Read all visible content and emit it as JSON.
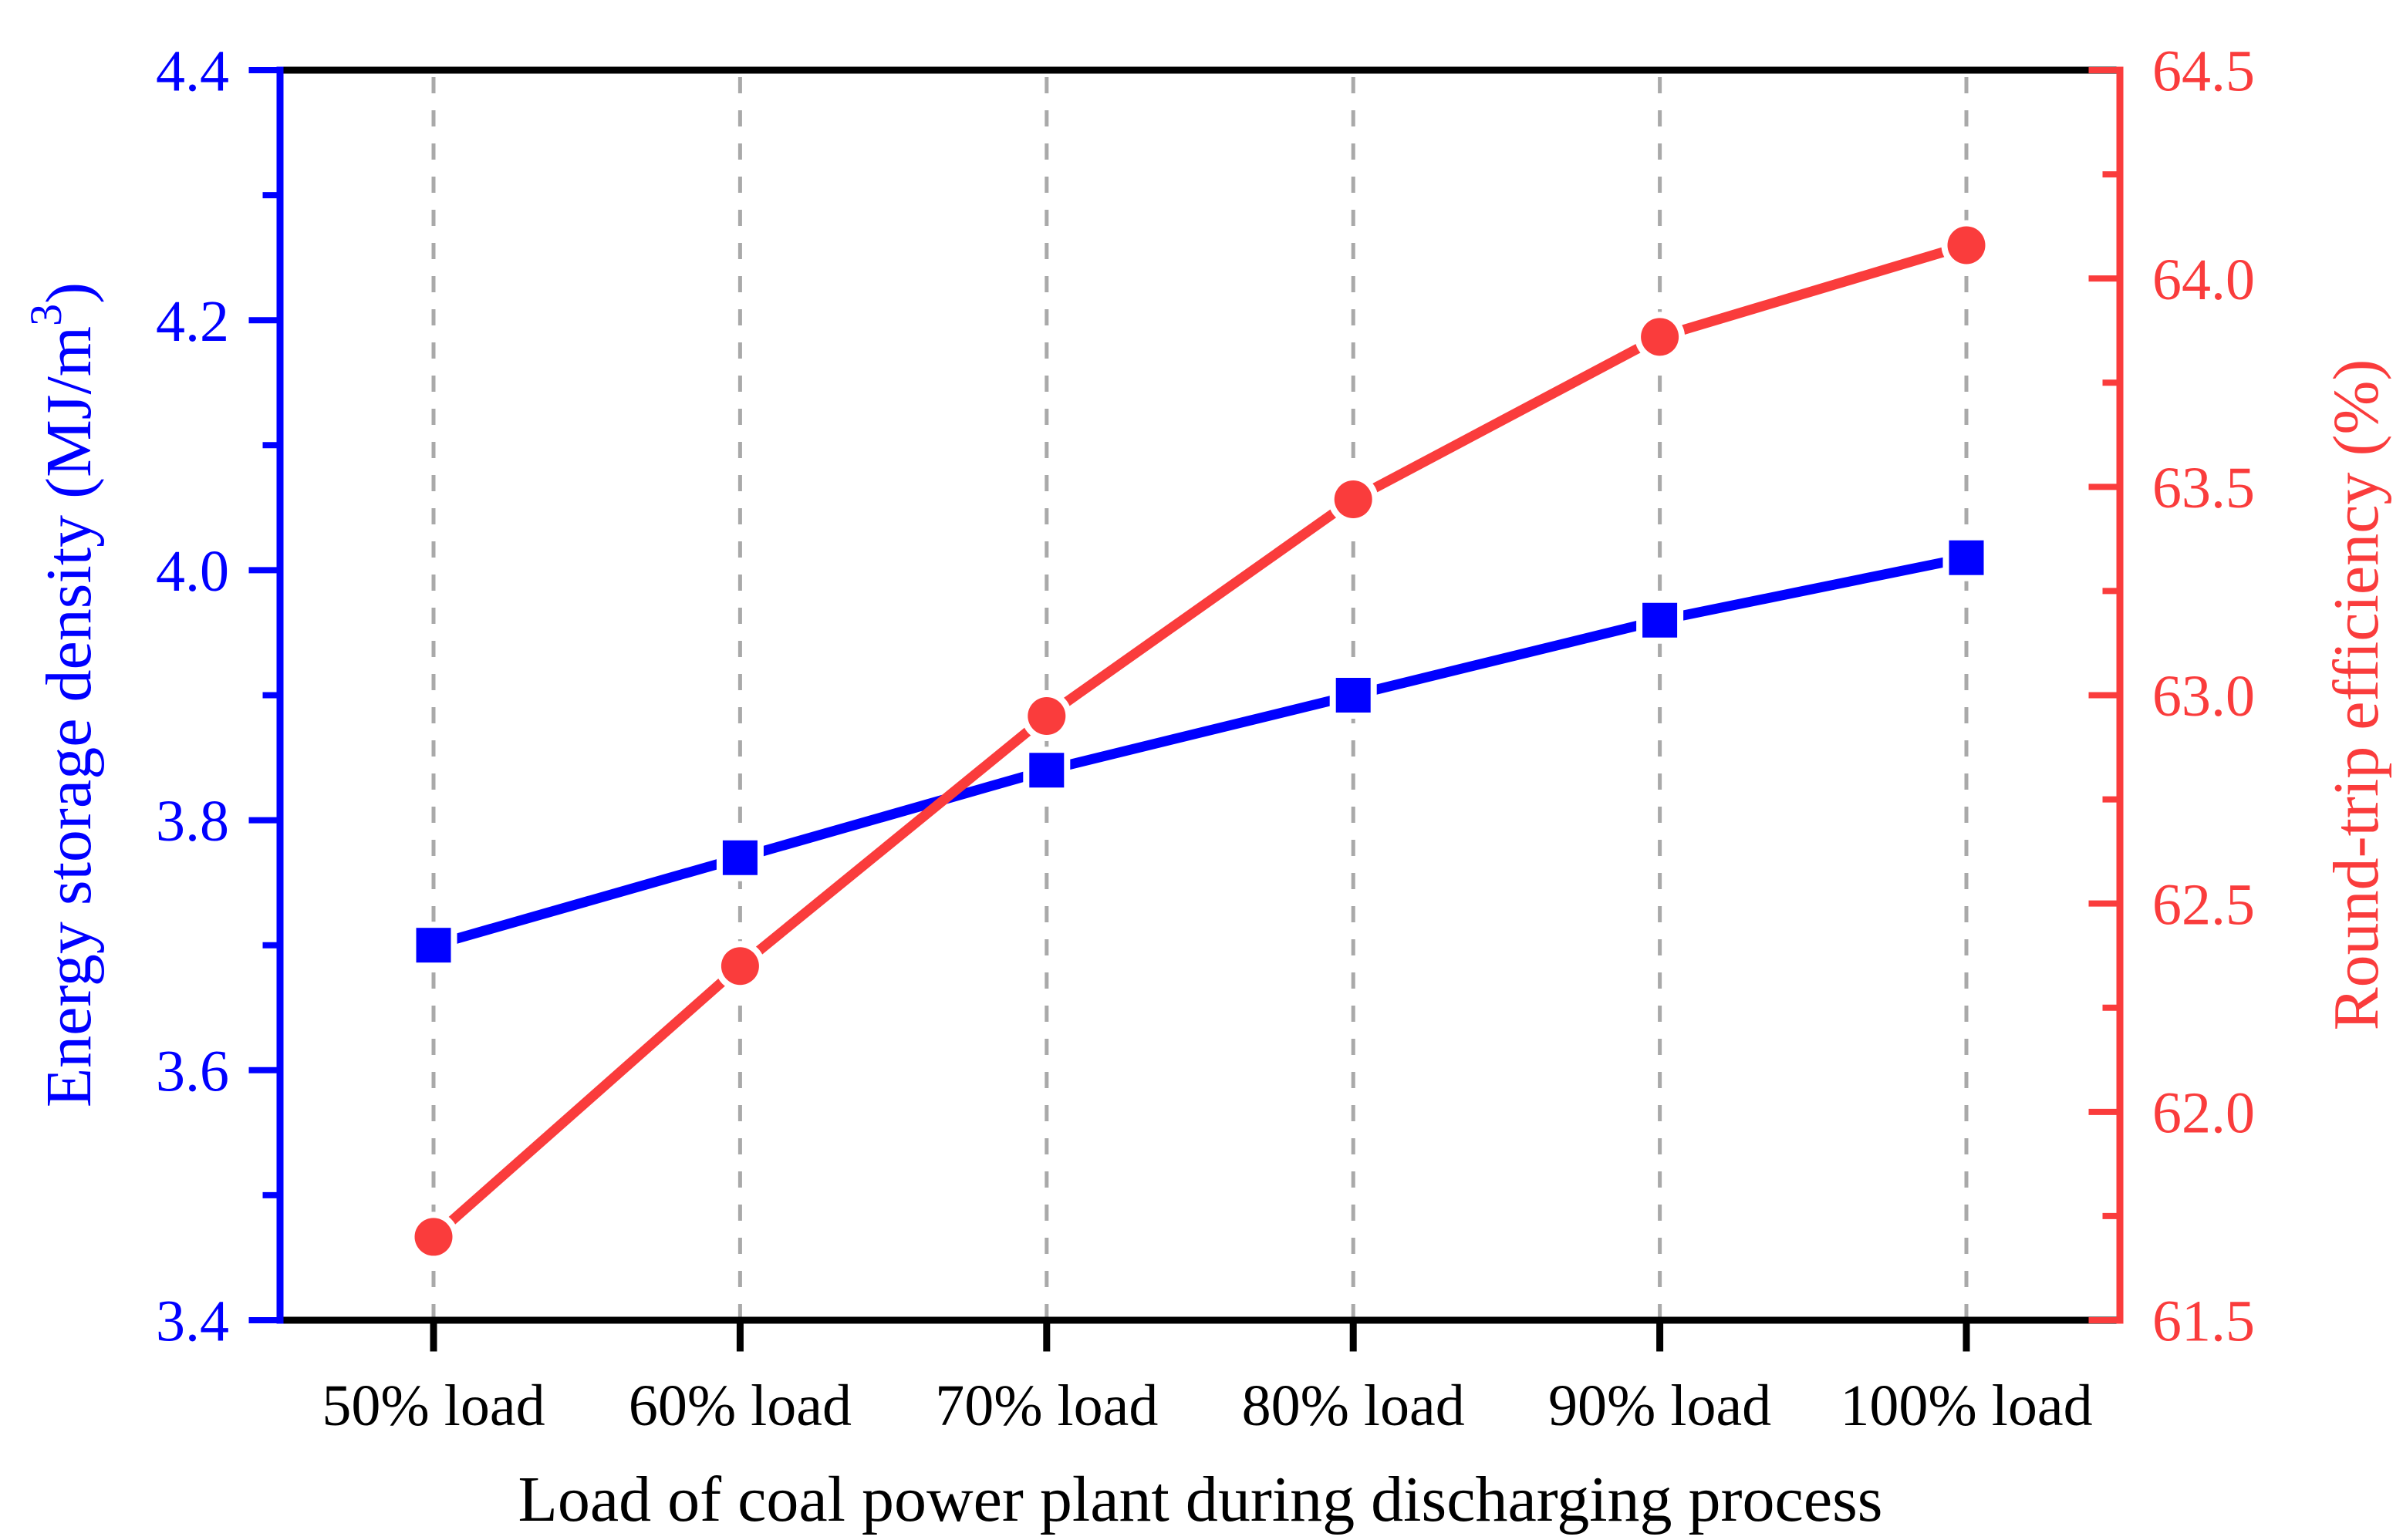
{
  "chart_data": {
    "type": "line",
    "title": "",
    "categories": [
      "50% load",
      "60% load",
      "70% load",
      "80% load",
      "90% load",
      "100% load"
    ],
    "xlabel": "Load of coal power plant during discharging process",
    "series": [
      {
        "name": "Energy storage density",
        "axis": "left",
        "color": "#0000FF",
        "marker": "square",
        "values": [
          3.7,
          3.77,
          3.84,
          3.9,
          3.96,
          4.01
        ]
      },
      {
        "name": "Round-trip efficiency",
        "axis": "right",
        "color": "#FA3C3C",
        "marker": "circle",
        "values": [
          61.7,
          62.35,
          62.95,
          63.47,
          63.86,
          64.08
        ]
      }
    ],
    "left_axis": {
      "label": "Energy storage density (MJ/m³)",
      "label_parts": {
        "pre": "Energy storage density (MJ/m",
        "sup": "3",
        "post": ")"
      },
      "color": "#0000FF",
      "min": 3.4,
      "max": 4.4,
      "major_tick_step": 0.2,
      "minor_tick_step": 0.1,
      "major_tick_labels": [
        "3.4",
        "3.6",
        "3.8",
        "4.0",
        "4.2",
        "4.4"
      ]
    },
    "right_axis": {
      "label": "Round-trip efficiency (%)",
      "color": "#FA3C3C",
      "min": 61.5,
      "max": 64.5,
      "major_tick_step": 0.5,
      "minor_tick_step": 0.25,
      "major_tick_labels": [
        "61.5",
        "62.0",
        "62.5",
        "63.0",
        "63.5",
        "64.0",
        "64.5"
      ]
    },
    "x_axis": {
      "color": "#000000",
      "tick_labels": [
        "50% load",
        "60% load",
        "70% load",
        "80% load",
        "90% load",
        "100% load"
      ]
    },
    "grid": {
      "vertical_dashed": true,
      "color": "#A9A9A9"
    },
    "legend": "none"
  }
}
